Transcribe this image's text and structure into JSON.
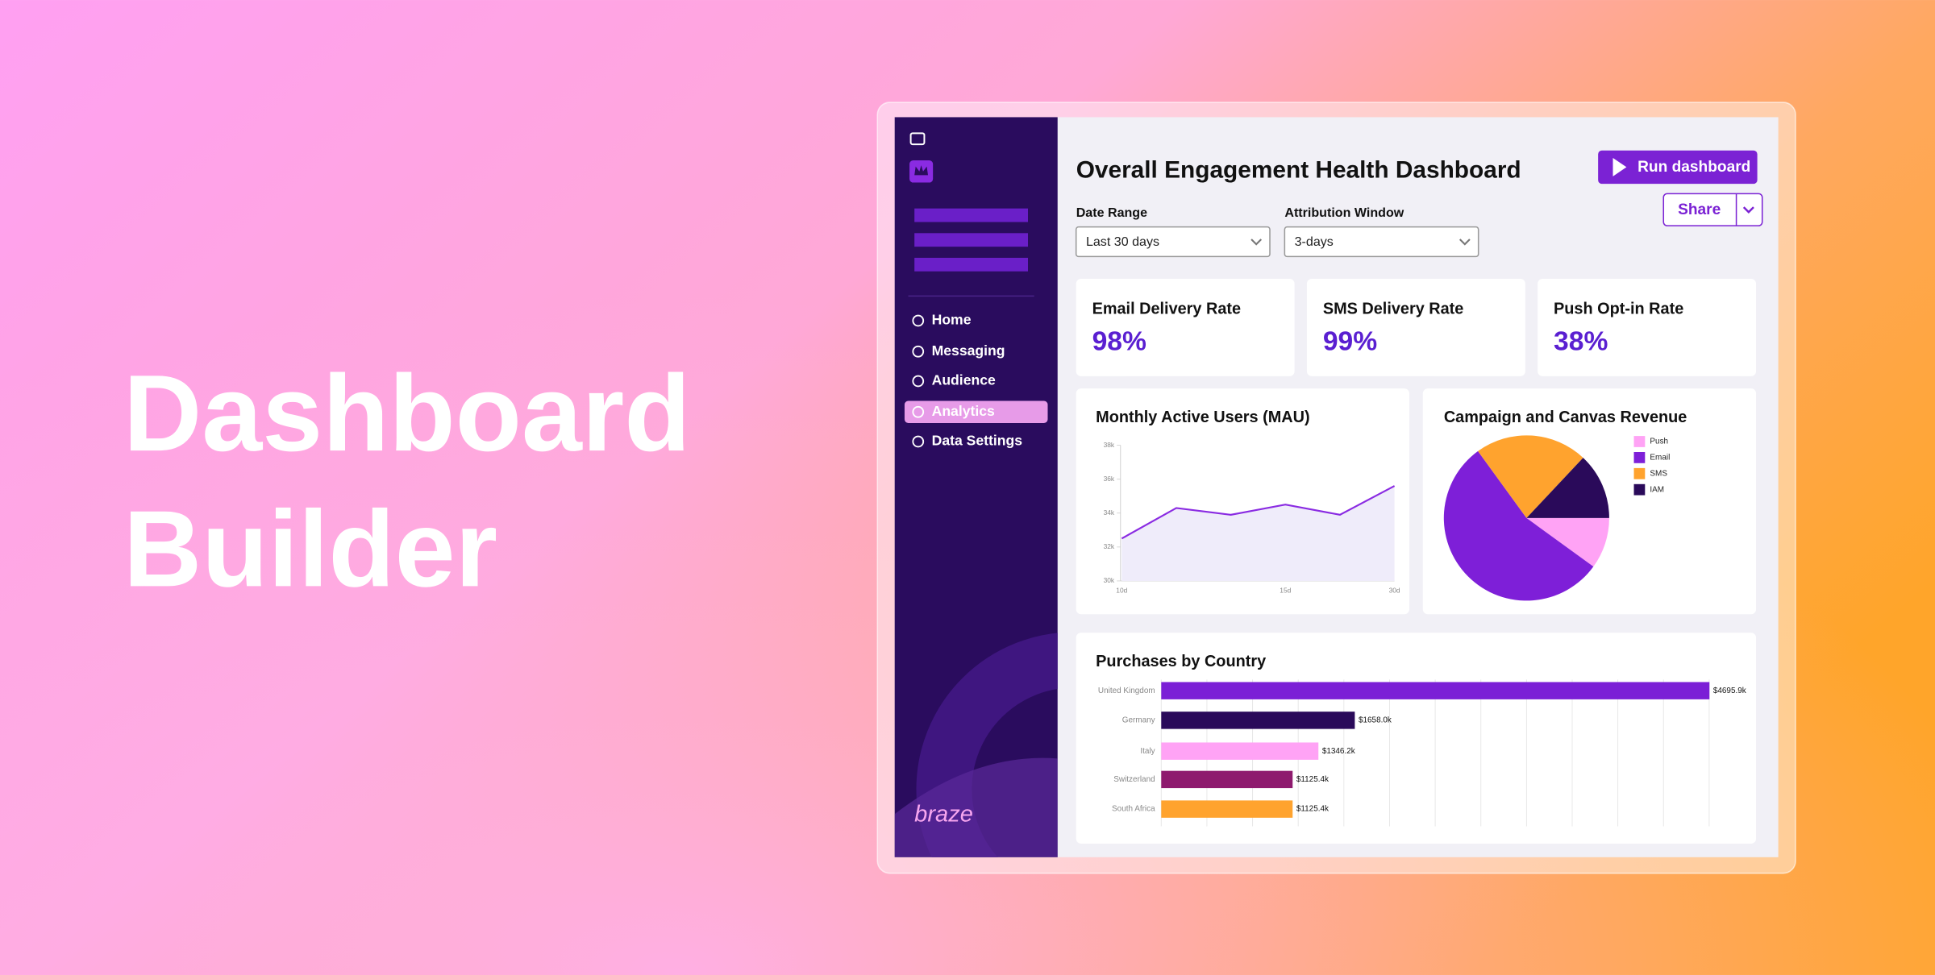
{
  "hero": {
    "title_lines": [
      "Dashboard",
      "Builder"
    ]
  },
  "sidebar": {
    "nav": [
      "Home",
      "Messaging",
      "Audience",
      "Analytics",
      "Data Settings"
    ],
    "active": 3,
    "logo": "braze"
  },
  "header": {
    "title": "Overall Engagement Health Dashboard",
    "run_button": "Run dashboard",
    "share_button": "Share"
  },
  "filters": [
    {
      "label": "Date Range",
      "value": "Last 30 days"
    },
    {
      "label": "Attribution Window",
      "value": "3-days"
    }
  ],
  "kpis": [
    {
      "label": "Email Delivery Rate",
      "value": "98%"
    },
    {
      "label": "SMS Delivery Rate",
      "value": "99%"
    },
    {
      "label": "Push Opt-in Rate",
      "value": "38%"
    }
  ],
  "mau_chart": {
    "type": "line",
    "title": "Monthly Active Users (MAU)",
    "categories": [
      "10d",
      null,
      null,
      "15d",
      null,
      "30d"
    ],
    "values": [
      32.5,
      34.3,
      33.9,
      34.5,
      33.9,
      35.6
    ],
    "ylim": [
      30,
      38
    ],
    "yticks": [
      {
        "value": 30,
        "label": "30k"
      },
      {
        "value": 32,
        "label": "32k"
      },
      {
        "value": 34,
        "label": "34k"
      },
      {
        "value": 36,
        "label": "36k"
      },
      {
        "value": 38,
        "label": "38k"
      }
    ],
    "color": "#8a2be2"
  },
  "revenue_chart": {
    "type": "pie",
    "title": "Campaign and Canvas Revenue",
    "categories": [
      "Push",
      "Email",
      "SMS",
      "IAM"
    ],
    "values": [
      10,
      55,
      22,
      13
    ],
    "colors": [
      "#ffa3f5",
      "#7e1fd8",
      "#ffa32e",
      "#2a0a5a"
    ]
  },
  "purchases_chart": {
    "type": "bar",
    "title": "Purchases by Country",
    "categories": [
      "United Kingdom",
      "Germany",
      "Italy",
      "Switzerland",
      "South Africa"
    ],
    "values": [
      4695.9,
      1658.0,
      1346.2,
      1125.4,
      1125.4
    ],
    "value_labels": [
      "$4695.9k",
      "$1658.0k",
      "$1346.2k",
      "$1125.4k",
      "$1125.4k"
    ],
    "colors": [
      "#7b1fd6",
      "#2a0a5a",
      "#ffa3f5",
      "#8e1a6e",
      "#ffa32e"
    ],
    "xlim": [
      0,
      5000
    ]
  }
}
